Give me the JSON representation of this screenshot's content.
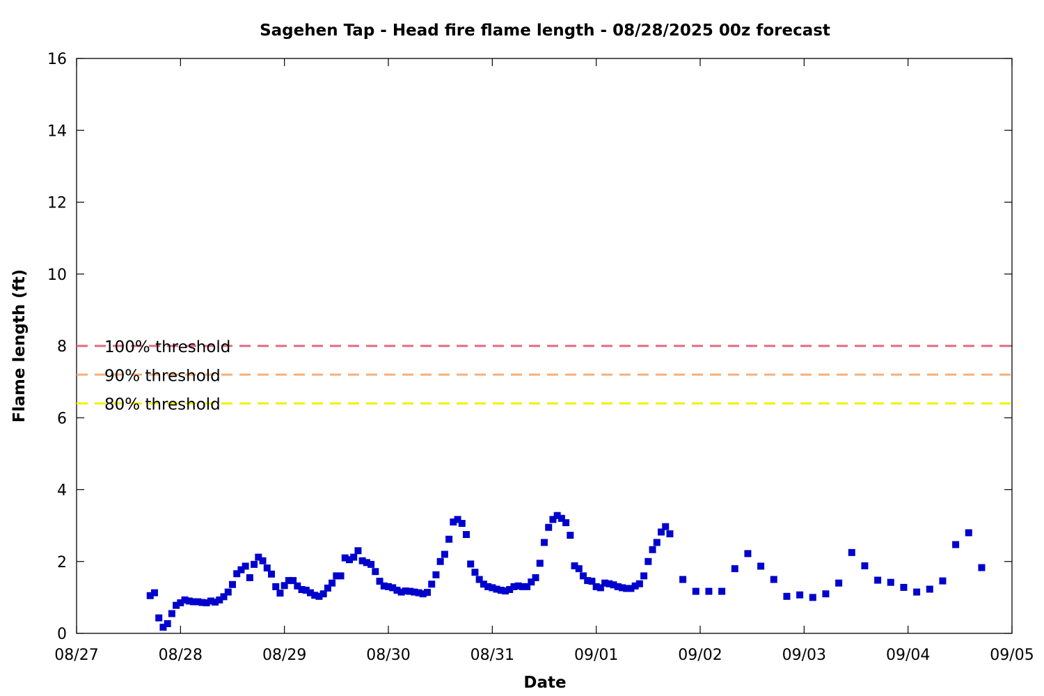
{
  "chart_data": {
    "type": "scatter",
    "title": "Sagehen Tap - Head fire flame length - 08/28/2025 00z forecast",
    "xlabel": "Date",
    "ylabel": "Flame length (ft)",
    "x_ticks": [
      "08/27",
      "08/28",
      "08/29",
      "08/30",
      "08/31",
      "09/01",
      "09/02",
      "09/03",
      "09/04",
      "09/05"
    ],
    "xlim": [
      "08/27",
      "09/05"
    ],
    "y_ticks": [
      "0",
      "2",
      "4",
      "6",
      "8",
      "10",
      "12",
      "14",
      "16"
    ],
    "ylim": [
      0,
      16
    ],
    "grid": false,
    "point_color": "#0000cc",
    "thresholds": [
      {
        "label": "100% threshold",
        "value": 8.0,
        "color": "#e06a7d"
      },
      {
        "label": "90% threshold",
        "value": 7.2,
        "color": "#f5b07a"
      },
      {
        "label": "80% threshold",
        "value": 6.4,
        "color": "#f0f000"
      }
    ],
    "series": [
      {
        "x": [
          "08/27 17:00",
          "08/27 18:00",
          "08/27 19:00",
          "08/27 20:00",
          "08/27 21:00",
          "08/27 22:00",
          "08/27 23:00",
          "08/28 00:00",
          "08/28 01:00",
          "08/28 02:00",
          "08/28 03:00",
          "08/28 04:00",
          "08/28 05:00",
          "08/28 06:00",
          "08/28 07:00",
          "08/28 08:00",
          "08/28 09:00",
          "08/28 10:00",
          "08/28 11:00",
          "08/28 12:00",
          "08/28 13:00",
          "08/28 14:00",
          "08/28 15:00",
          "08/28 16:00",
          "08/28 17:00",
          "08/28 18:00",
          "08/28 19:00",
          "08/28 20:00",
          "08/28 21:00",
          "08/28 22:00",
          "08/28 23:00",
          "08/29 00:00",
          "08/29 01:00",
          "08/29 02:00",
          "08/29 03:00",
          "08/29 04:00",
          "08/29 05:00",
          "08/29 06:00",
          "08/29 07:00",
          "08/29 08:00",
          "08/29 09:00",
          "08/29 10:00",
          "08/29 11:00",
          "08/29 12:00",
          "08/29 13:00",
          "08/29 14:00",
          "08/29 15:00",
          "08/29 16:00",
          "08/29 17:00",
          "08/29 18:00",
          "08/29 19:00",
          "08/29 20:00",
          "08/29 21:00",
          "08/29 22:00",
          "08/29 23:00",
          "08/30 00:00",
          "08/30 01:00",
          "08/30 02:00",
          "08/30 03:00",
          "08/30 04:00",
          "08/30 05:00",
          "08/30 06:00",
          "08/30 07:00",
          "08/30 08:00",
          "08/30 09:00",
          "08/30 10:00",
          "08/30 11:00",
          "08/30 12:00",
          "08/30 13:00",
          "08/30 14:00",
          "08/30 15:00",
          "08/30 16:00",
          "08/30 17:00",
          "08/30 18:00",
          "08/30 19:00",
          "08/30 20:00",
          "08/30 21:00",
          "08/30 22:00",
          "08/30 23:00",
          "08/31 00:00",
          "08/31 01:00",
          "08/31 02:00",
          "08/31 03:00",
          "08/31 04:00",
          "08/31 05:00",
          "08/31 06:00",
          "08/31 07:00",
          "08/31 08:00",
          "08/31 09:00",
          "08/31 10:00",
          "08/31 11:00",
          "08/31 12:00",
          "08/31 13:00",
          "08/31 14:00",
          "08/31 15:00",
          "08/31 16:00",
          "08/31 17:00",
          "08/31 18:00",
          "08/31 19:00",
          "08/31 20:00",
          "08/31 21:00",
          "08/31 22:00",
          "08/31 23:00",
          "09/01 00:00",
          "09/01 01:00",
          "09/01 02:00",
          "09/01 03:00",
          "09/01 04:00",
          "09/01 05:00",
          "09/01 06:00",
          "09/01 07:00",
          "09/01 08:00",
          "09/01 09:00",
          "09/01 10:00",
          "09/01 11:00",
          "09/01 12:00",
          "09/01 13:00",
          "09/01 14:00",
          "09/01 15:00",
          "09/01 16:00",
          "09/01 17:00",
          "09/01 20:00",
          "09/01 23:00",
          "09/02 02:00",
          "09/02 05:00",
          "09/02 08:00",
          "09/02 11:00",
          "09/02 14:00",
          "09/02 17:00",
          "09/02 20:00",
          "09/02 23:00",
          "09/03 02:00",
          "09/03 05:00",
          "09/03 08:00",
          "09/03 11:00",
          "09/03 14:00",
          "09/03 17:00",
          "09/03 20:00",
          "09/03 23:00",
          "09/04 02:00",
          "09/04 05:00",
          "09/04 08:00",
          "09/04 11:00",
          "09/04 14:00",
          "09/04 17:00"
        ],
        "y": [
          1.05,
          1.13,
          0.43,
          0.17,
          0.27,
          0.55,
          0.78,
          0.85,
          0.93,
          0.9,
          0.88,
          0.88,
          0.86,
          0.85,
          0.9,
          0.87,
          0.93,
          1.02,
          1.15,
          1.36,
          1.66,
          1.77,
          1.87,
          1.55,
          1.92,
          2.12,
          2.02,
          1.82,
          1.65,
          1.3,
          1.12,
          1.33,
          1.47,
          1.47,
          1.32,
          1.22,
          1.2,
          1.13,
          1.06,
          1.03,
          1.1,
          1.26,
          1.4,
          1.6,
          1.6,
          2.1,
          2.05,
          2.12,
          2.3,
          2.02,
          1.97,
          1.92,
          1.72,
          1.45,
          1.32,
          1.3,
          1.27,
          1.2,
          1.15,
          1.18,
          1.17,
          1.15,
          1.13,
          1.1,
          1.14,
          1.37,
          1.63,
          2.0,
          2.2,
          2.62,
          3.1,
          3.17,
          3.06,
          2.75,
          1.93,
          1.7,
          1.5,
          1.37,
          1.3,
          1.27,
          1.23,
          1.2,
          1.18,
          1.22,
          1.3,
          1.32,
          1.3,
          1.3,
          1.43,
          1.55,
          1.95,
          2.53,
          2.95,
          3.17,
          3.28,
          3.2,
          3.08,
          2.73,
          1.88,
          1.8,
          1.6,
          1.47,
          1.45,
          1.3,
          1.27,
          1.4,
          1.38,
          1.35,
          1.3,
          1.27,
          1.25,
          1.25,
          1.32,
          1.38,
          1.6,
          2.0,
          2.33,
          2.53,
          2.82,
          2.97,
          2.77,
          1.5,
          1.17,
          1.17,
          1.17,
          1.8,
          2.22,
          1.87,
          1.5,
          1.03,
          1.07,
          1.0,
          1.1,
          1.4,
          2.25,
          1.88,
          1.48,
          1.42,
          1.28,
          1.15,
          1.23,
          1.46,
          2.47,
          2.8,
          1.83
        ]
      }
    ]
  }
}
